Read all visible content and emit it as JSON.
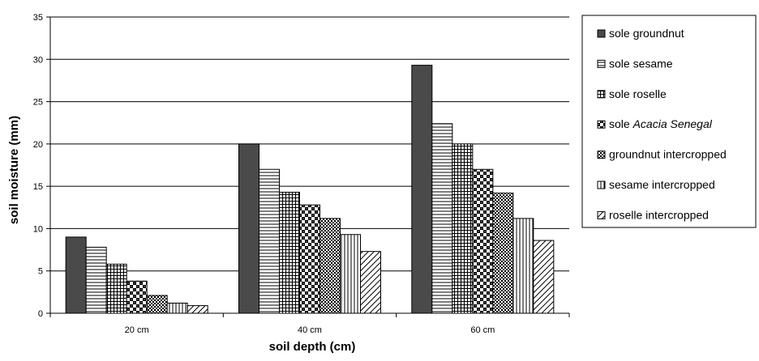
{
  "chart_data": {
    "type": "bar",
    "title": "",
    "xlabel": "soil depth (cm)",
    "ylabel": "soil moisture (mm)",
    "ylim": [
      0,
      35
    ],
    "yticks": [
      0,
      5,
      10,
      15,
      20,
      25,
      30,
      35
    ],
    "grid": true,
    "legend_position": "right",
    "categories": [
      "20 cm",
      "40 cm",
      "60 cm"
    ],
    "series": [
      {
        "name": "sole groundnut",
        "pattern": "solid-dark",
        "values": [
          9.0,
          20.0,
          29.3
        ]
      },
      {
        "name": "sole sesame",
        "pattern": "horizontal-lines",
        "values": [
          7.8,
          17.0,
          22.4
        ]
      },
      {
        "name": "sole roselle",
        "pattern": "small-grid",
        "values": [
          5.8,
          14.3,
          20.0
        ]
      },
      {
        "name_plain": "sole ",
        "name_italic": "Acacia Senegal",
        "pattern": "large-checker",
        "values": [
          3.8,
          12.8,
          17.0
        ]
      },
      {
        "name": "groundnut intercropped",
        "pattern": "small-checker",
        "values": [
          2.1,
          11.2,
          14.2
        ]
      },
      {
        "name": "sesame intercropped",
        "pattern": "vertical-lines",
        "values": [
          1.2,
          9.3,
          11.2
        ]
      },
      {
        "name": "roselle intercropped",
        "pattern": "diagonal-lines",
        "values": [
          0.9,
          7.3,
          8.6
        ]
      }
    ],
    "colors": {
      "bar_dark": "#4a4a4a",
      "outline": "#000000",
      "grid": "#000000"
    }
  }
}
